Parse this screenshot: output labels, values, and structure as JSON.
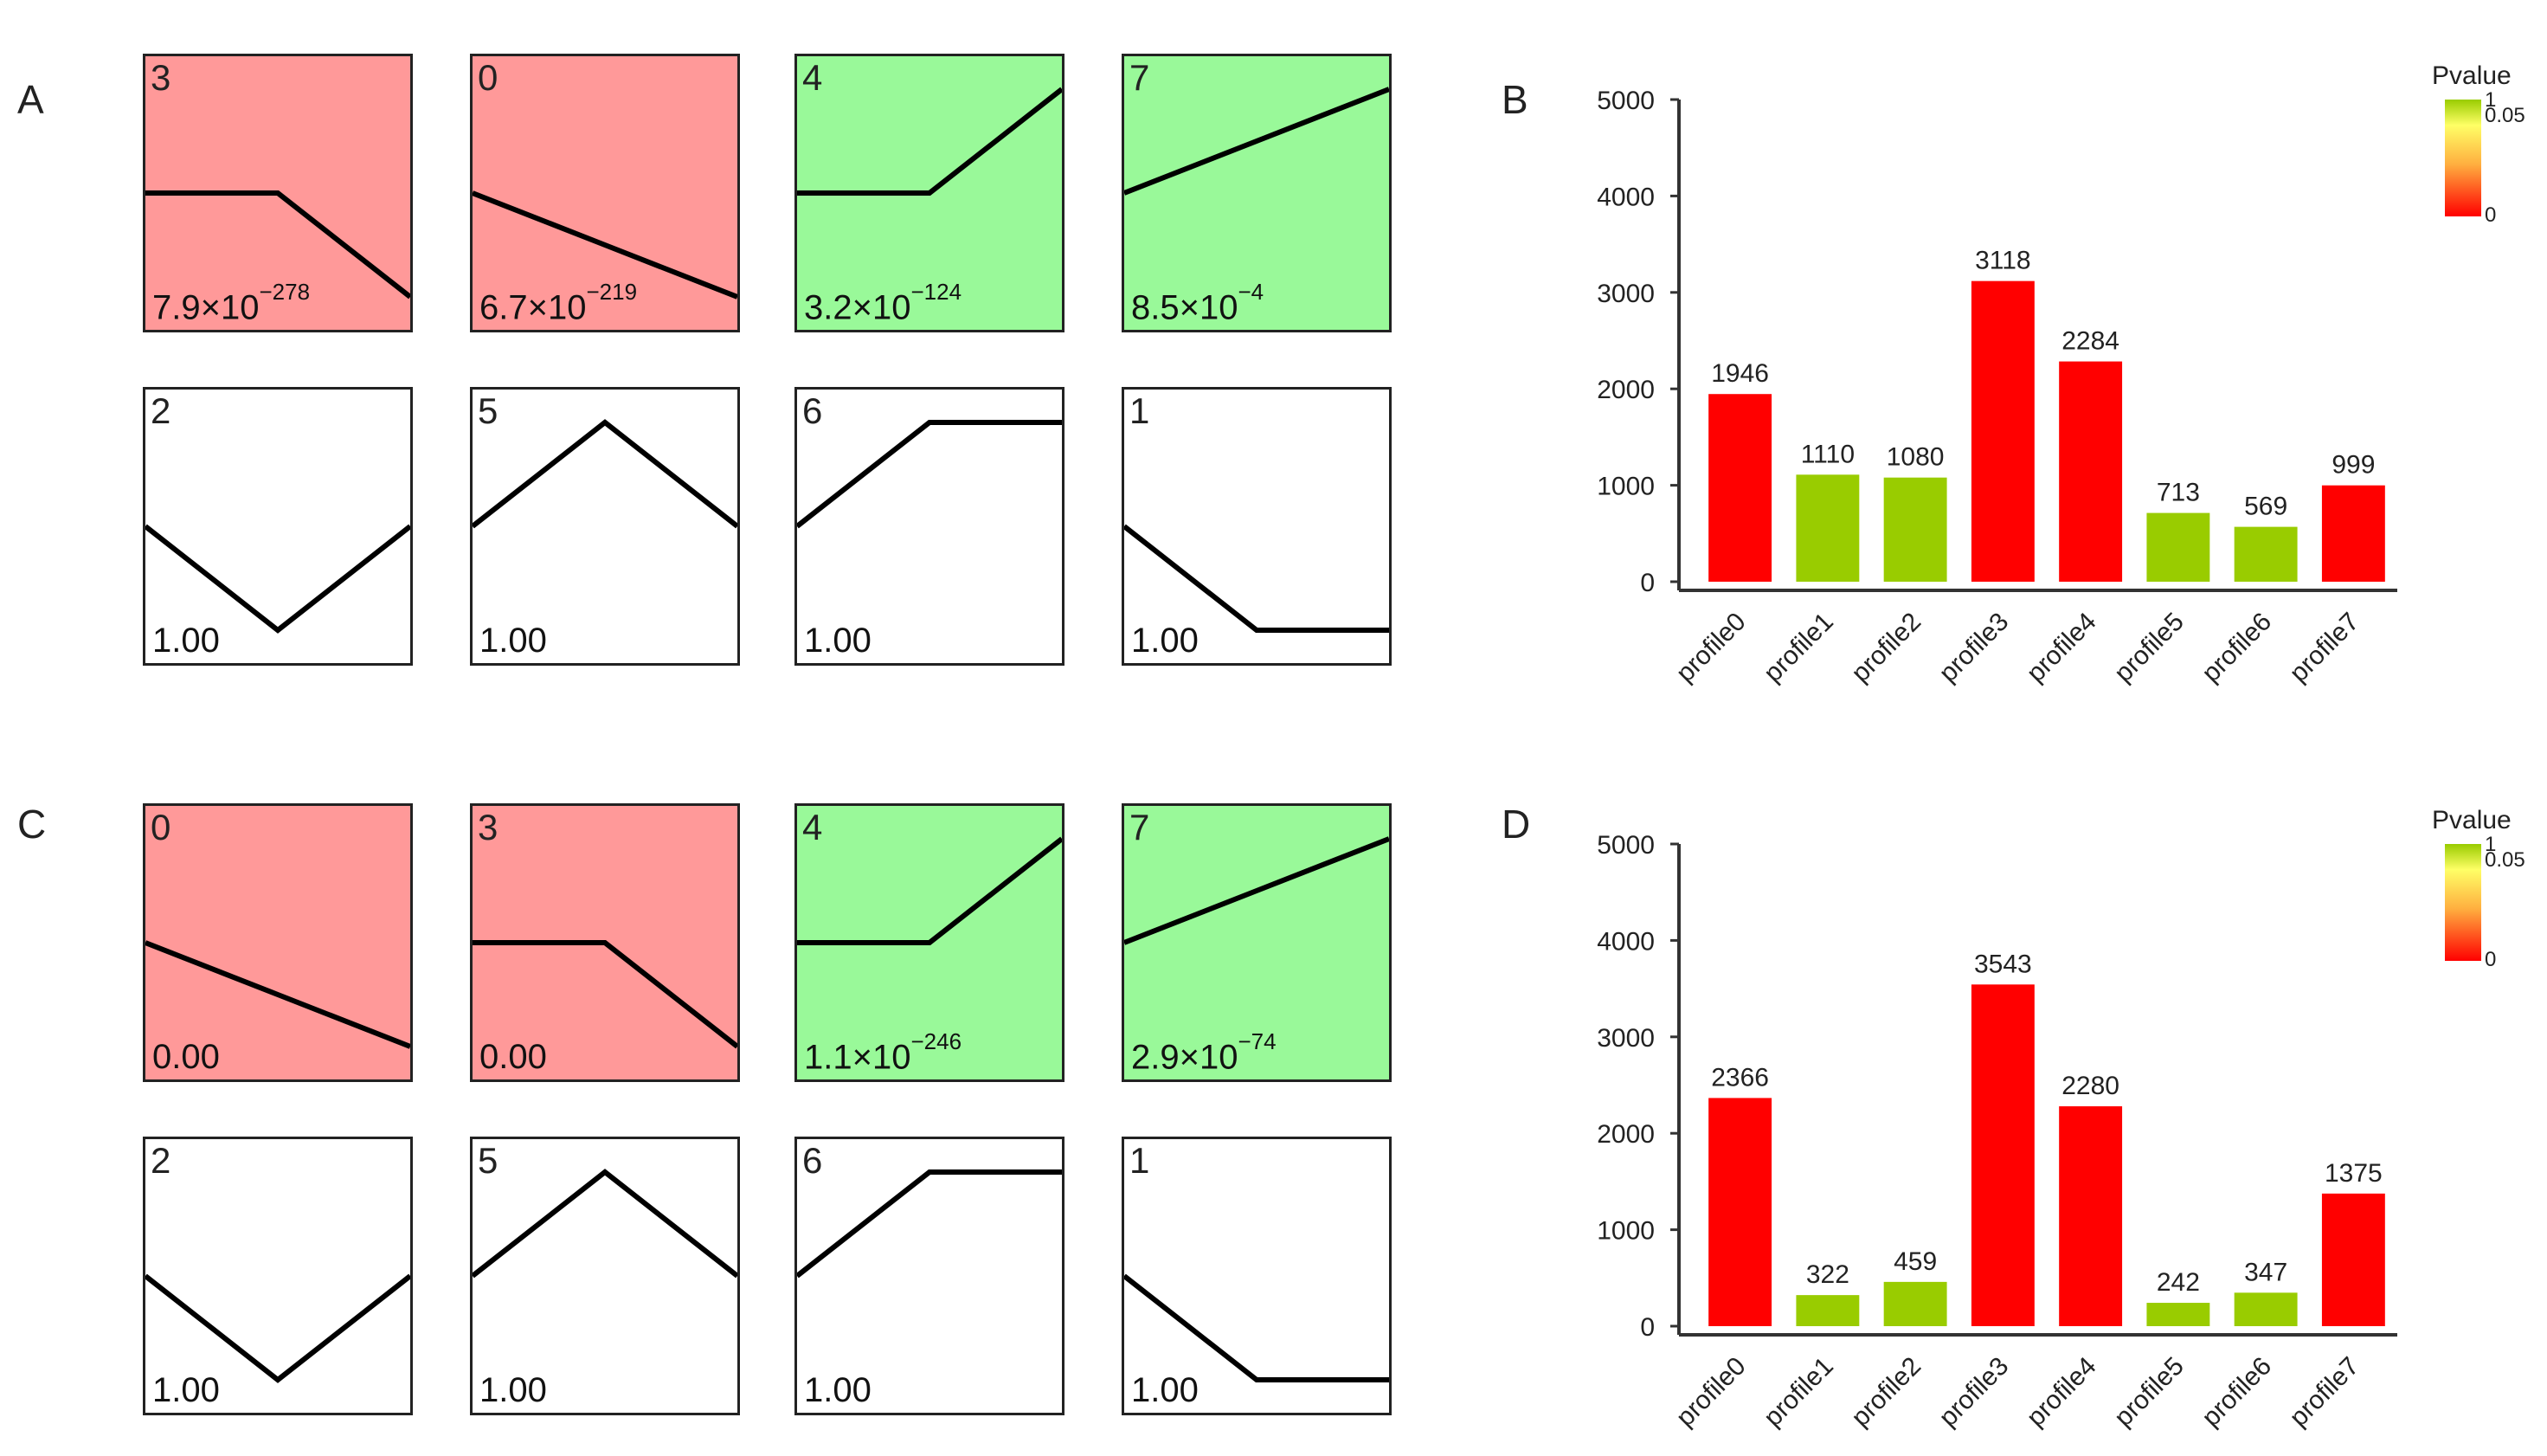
{
  "colors": {
    "significant_red": "#ff9999",
    "significant_green": "#99f999",
    "nonsignificant": "#ffffff",
    "bar_red": "#ff0000",
    "bar_green": "#99cc00"
  },
  "panels": [
    {
      "letter": "A",
      "profiles": [
        {
          "id": "3",
          "pvalue": "7.9×10",
          "pvalue_exp": "−278",
          "color": "red",
          "trend": [
            0,
            0,
            -1
          ]
        },
        {
          "id": "0",
          "pvalue": "6.7×10",
          "pvalue_exp": "−219",
          "color": "red",
          "trend": [
            0,
            -0.5,
            -1
          ]
        },
        {
          "id": "4",
          "pvalue": "3.2×10",
          "pvalue_exp": "−124",
          "color": "green",
          "trend": [
            0,
            0,
            1
          ]
        },
        {
          "id": "7",
          "pvalue": "8.5×10",
          "pvalue_exp": "−4",
          "color": "green",
          "trend": [
            0,
            0.5,
            1
          ]
        },
        {
          "id": "2",
          "pvalue": "1.00",
          "pvalue_exp": "",
          "color": "none",
          "trend": [
            0,
            -1,
            0
          ]
        },
        {
          "id": "5",
          "pvalue": "1.00",
          "pvalue_exp": "",
          "color": "none",
          "trend": [
            0,
            1,
            0
          ]
        },
        {
          "id": "6",
          "pvalue": "1.00",
          "pvalue_exp": "",
          "color": "none",
          "trend": [
            0,
            1,
            1
          ]
        },
        {
          "id": "1",
          "pvalue": "1.00",
          "pvalue_exp": "",
          "color": "none",
          "trend": [
            0,
            -1,
            -1
          ]
        }
      ]
    },
    {
      "letter": "C",
      "profiles": [
        {
          "id": "0",
          "pvalue": "0.00",
          "pvalue_exp": "",
          "color": "red",
          "trend": [
            0,
            -0.5,
            -1
          ]
        },
        {
          "id": "3",
          "pvalue": "0.00",
          "pvalue_exp": "",
          "color": "red",
          "trend": [
            0,
            0,
            -1
          ]
        },
        {
          "id": "4",
          "pvalue": "1.1×10",
          "pvalue_exp": "−246",
          "color": "green",
          "trend": [
            0,
            0,
            1
          ]
        },
        {
          "id": "7",
          "pvalue": "2.9×10",
          "pvalue_exp": "−74",
          "color": "green",
          "trend": [
            0,
            0.5,
            1
          ]
        },
        {
          "id": "2",
          "pvalue": "1.00",
          "pvalue_exp": "",
          "color": "none",
          "trend": [
            0,
            -1,
            0
          ]
        },
        {
          "id": "5",
          "pvalue": "1.00",
          "pvalue_exp": "",
          "color": "none",
          "trend": [
            0,
            1,
            0
          ]
        },
        {
          "id": "6",
          "pvalue": "1.00",
          "pvalue_exp": "",
          "color": "none",
          "trend": [
            0,
            1,
            1
          ]
        },
        {
          "id": "1",
          "pvalue": "1.00",
          "pvalue_exp": "",
          "color": "none",
          "trend": [
            0,
            -1,
            -1
          ]
        }
      ]
    }
  ],
  "chart_data": [
    {
      "panel": "B",
      "type": "bar",
      "title": "",
      "xlabel": "",
      "ylabel": "",
      "categories": [
        "profile0",
        "profile1",
        "profile2",
        "profile3",
        "profile4",
        "profile5",
        "profile6",
        "profile7"
      ],
      "values": [
        1946,
        1110,
        1080,
        3118,
        2284,
        713,
        569,
        999
      ],
      "bar_colors": [
        "red",
        "green",
        "green",
        "red",
        "red",
        "green",
        "green",
        "red"
      ],
      "ylim": [
        0,
        5000
      ],
      "yticks": [
        "0",
        "1000",
        "2000",
        "3000",
        "4000",
        "5000"
      ],
      "legend": {
        "title": "Pvalue",
        "labels": [
          "1",
          "0.05",
          "0"
        ],
        "placement": "top-right"
      },
      "grid": false
    },
    {
      "panel": "D",
      "type": "bar",
      "title": "",
      "xlabel": "",
      "ylabel": "",
      "categories": [
        "profile0",
        "profile1",
        "profile2",
        "profile3",
        "profile4",
        "profile5",
        "profile6",
        "profile7"
      ],
      "values": [
        2366,
        322,
        459,
        3543,
        2280,
        242,
        347,
        1375
      ],
      "bar_colors": [
        "red",
        "green",
        "green",
        "red",
        "red",
        "green",
        "green",
        "red"
      ],
      "ylim": [
        0,
        5000
      ],
      "yticks": [
        "0",
        "1000",
        "2000",
        "3000",
        "4000",
        "5000"
      ],
      "legend": {
        "title": "Pvalue",
        "labels": [
          "1",
          "0.05",
          "0"
        ],
        "placement": "top-right"
      },
      "grid": false
    }
  ]
}
